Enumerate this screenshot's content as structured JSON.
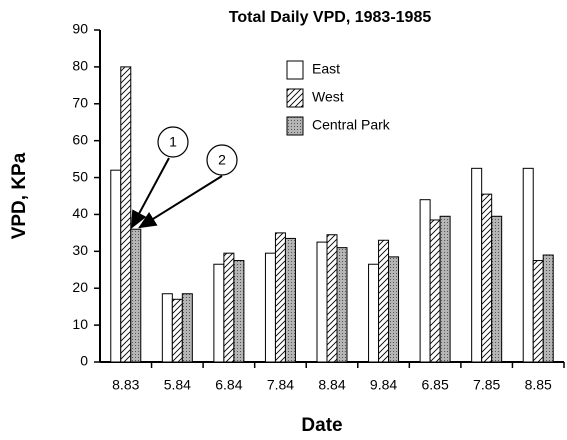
{
  "chart_data": {
    "type": "bar",
    "title": "Total  Daily  VPD,  1983-1985",
    "x_label": "Date",
    "y_label": "VPD,  KPa",
    "categories": [
      "8.83",
      "5.84",
      "6.84",
      "7.84",
      "8.84",
      "9.84",
      "6.85",
      "7.85",
      "8.85"
    ],
    "series": [
      {
        "name": "East",
        "color": "#ffffff",
        "pattern": "none",
        "values": [
          52,
          18.5,
          26.5,
          29.5,
          32.5,
          26.5,
          44,
          52.5,
          52.5
        ]
      },
      {
        "name": "West",
        "color": "#ffffff",
        "pattern": "hatch",
        "values": [
          80,
          17,
          29.5,
          35,
          34.5,
          33,
          38.5,
          45.5,
          27.5
        ]
      },
      {
        "name": "Central Park",
        "color": "#a8a8a8",
        "pattern": "dots",
        "values": [
          36,
          18.5,
          27.5,
          33.5,
          31,
          28.5,
          39.5,
          39.5,
          29
        ]
      }
    ],
    "annotations": [
      "1",
      "2"
    ],
    "ylim": [
      0,
      90
    ],
    "yticks": [
      0,
      10,
      20,
      30,
      40,
      50,
      60,
      70,
      80,
      90
    ],
    "grid": false
  }
}
